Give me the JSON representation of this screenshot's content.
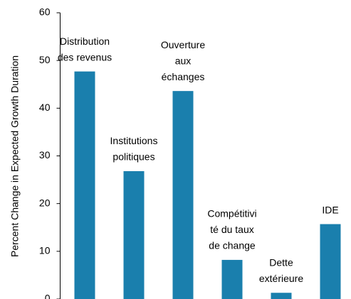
{
  "chart_data": {
    "type": "bar",
    "y_label": "Percent Change in Expected Growth Duration",
    "categories": [
      [
        "Distribution",
        "des revenus"
      ],
      [
        "Institutions",
        "politiques"
      ],
      [
        "Ouverture",
        "aux",
        "échanges"
      ],
      [
        "Compétitivi",
        "té du taux",
        "de change"
      ],
      [
        "Dette",
        "extérieure"
      ],
      [
        "IDE"
      ]
    ],
    "values": [
      47.7,
      26.8,
      43.6,
      8.2,
      1.3,
      15.7
    ],
    "color": "#1a7fad",
    "ylim": [
      0,
      60
    ],
    "yticks": [
      0,
      10,
      20,
      30,
      40,
      50,
      60
    ],
    "grid": false
  }
}
